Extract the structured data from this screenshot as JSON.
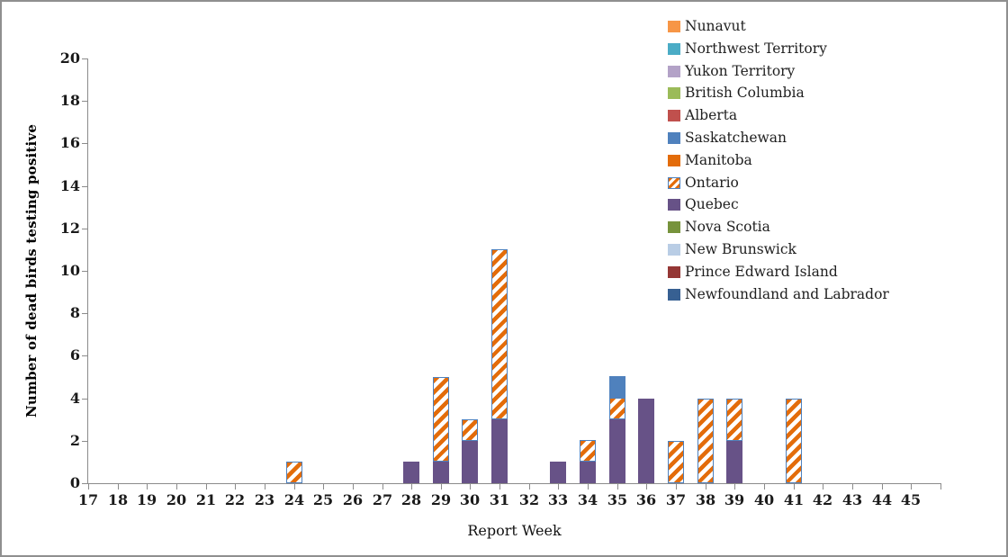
{
  "chart_data": {
    "type": "bar",
    "stacked": true,
    "title": "",
    "xlabel": "Report Week",
    "ylabel": "Number of dead birds testing positive",
    "ylim": [
      0,
      20
    ],
    "ytick_step": 2,
    "grid": false,
    "legend_position": "top-right",
    "categories": [
      17,
      18,
      19,
      20,
      21,
      22,
      23,
      24,
      25,
      26,
      27,
      28,
      29,
      30,
      31,
      32,
      33,
      34,
      35,
      36,
      37,
      38,
      39,
      40,
      41,
      42,
      43,
      44,
      45
    ],
    "series": [
      {
        "name": "Quebec",
        "color": "#675287",
        "pattern": "solid",
        "values": [
          0,
          0,
          0,
          0,
          0,
          0,
          0,
          0,
          0,
          0,
          0,
          1,
          1,
          2,
          3,
          0,
          1,
          1,
          3,
          4,
          0,
          0,
          2,
          0,
          0,
          0,
          0,
          0,
          0
        ]
      },
      {
        "name": "Ontario",
        "color": "#E36C0A",
        "pattern": "diagonal-stripes",
        "background": "#FFFFFF",
        "border": "#4F81BD",
        "values": [
          0,
          0,
          0,
          0,
          0,
          0,
          0,
          1,
          0,
          0,
          0,
          0,
          4,
          1,
          8,
          0,
          0,
          1,
          1,
          0,
          2,
          4,
          2,
          0,
          4,
          0,
          0,
          0,
          0
        ]
      },
      {
        "name": "Saskatchewan",
        "color": "#4F81BD",
        "pattern": "solid",
        "values": [
          0,
          0,
          0,
          0,
          0,
          0,
          0,
          0,
          0,
          0,
          0,
          0,
          0,
          0,
          0,
          0,
          0,
          0,
          1,
          0,
          0,
          0,
          0,
          0,
          0,
          0,
          0,
          0,
          0
        ]
      }
    ],
    "legend": [
      {
        "label": "Nunavut",
        "color": "#F79646",
        "pattern": "solid"
      },
      {
        "label": "Northwest Territory",
        "color": "#4BACC6",
        "pattern": "solid"
      },
      {
        "label": "Yukon Territory",
        "color": "#B3A2C7",
        "pattern": "solid"
      },
      {
        "label": "British Columbia",
        "color": "#9BBB59",
        "pattern": "solid"
      },
      {
        "label": "Alberta",
        "color": "#C0504D",
        "pattern": "solid"
      },
      {
        "label": "Saskatchewan",
        "color": "#4F81BD",
        "pattern": "solid"
      },
      {
        "label": "Manitoba",
        "color": "#E36C0A",
        "pattern": "solid"
      },
      {
        "label": "Ontario",
        "color": "#E36C0A",
        "pattern": "diagonal-stripes",
        "background": "#FFFFFF",
        "border": "#4F81BD"
      },
      {
        "label": "Quebec",
        "color": "#675287",
        "pattern": "solid"
      },
      {
        "label": "Nova Scotia",
        "color": "#77933C",
        "pattern": "solid"
      },
      {
        "label": "New Brunswick",
        "color": "#B9CDE5",
        "pattern": "solid"
      },
      {
        "label": "Prince Edward Island",
        "color": "#953735",
        "pattern": "solid"
      },
      {
        "label": "Newfoundland and Labrador",
        "color": "#376092",
        "pattern": "solid"
      }
    ]
  }
}
